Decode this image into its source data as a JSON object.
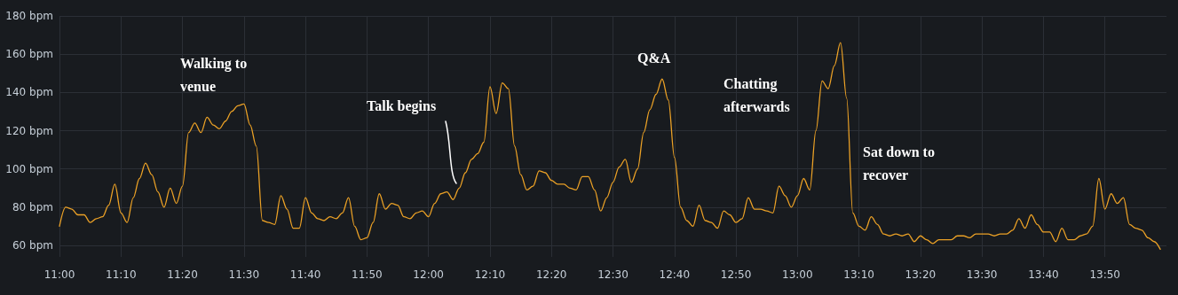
{
  "chart_data": {
    "type": "line",
    "x": [
      11.0,
      11.0167,
      11.0333,
      11.05,
      11.0667,
      11.0833,
      11.1,
      11.1167,
      11.1333,
      11.15,
      11.1667,
      11.1833,
      11.2,
      11.2167,
      11.2333,
      11.25,
      11.2667,
      11.2833,
      11.3,
      11.3167,
      11.3333,
      11.35,
      11.3667,
      11.3833,
      11.4,
      11.4167,
      11.4333,
      11.45,
      11.4667,
      11.4833,
      11.5,
      11.5167,
      11.5333,
      11.55,
      11.5667,
      11.5833,
      11.6,
      11.6167,
      11.6333,
      11.65,
      11.6667,
      11.6833,
      11.7,
      11.7167,
      11.7333,
      11.75,
      11.7667,
      11.7833,
      11.8,
      11.8167,
      11.8333,
      11.85,
      11.8667,
      11.8833,
      11.9,
      11.9167,
      11.9333,
      11.95,
      11.9667,
      11.9833,
      12.0,
      12.0167,
      12.0333,
      12.05,
      12.0667,
      12.0833,
      12.1,
      12.1167,
      12.1333,
      12.15,
      12.1667,
      12.1833,
      12.2,
      12.2167,
      12.2333,
      12.25,
      12.2667,
      12.2833,
      12.3,
      12.3167,
      12.3333,
      12.35,
      12.3667,
      12.3833,
      12.4,
      12.4167,
      12.4333,
      12.45,
      12.4667,
      12.4833,
      12.5,
      12.5167,
      12.5333,
      12.55,
      12.5667,
      12.5833,
      12.6,
      12.6167,
      12.6333,
      12.65,
      12.6667,
      12.6833,
      12.7,
      12.7167,
      12.7333,
      12.75,
      12.7667,
      12.7833,
      12.8,
      12.8167,
      12.8333,
      12.85,
      12.8667,
      12.8833,
      12.9,
      12.9167,
      12.9333,
      12.95,
      12.9667,
      12.9833,
      13.0,
      13.0167,
      13.0333,
      13.05,
      13.0667,
      13.0833,
      13.1,
      13.1167,
      13.1333,
      13.15,
      13.1667,
      13.1833,
      13.2,
      13.2167,
      13.2333,
      13.25,
      13.2667,
      13.2833,
      13.3,
      13.3167,
      13.3333,
      13.35,
      13.3667,
      13.3833,
      13.4,
      13.4167,
      13.4333,
      13.45,
      13.4667,
      13.4833,
      13.5,
      13.5167,
      13.5333,
      13.55,
      13.5667,
      13.5833,
      13.6,
      13.6167,
      13.6333,
      13.65,
      13.6667,
      13.6833,
      13.7,
      13.7167,
      13.7333,
      13.75,
      13.7667,
      13.7833,
      13.8,
      13.8167,
      13.8333,
      13.85,
      13.8667,
      13.8833,
      13.9,
      13.9167,
      13.9333,
      13.95,
      13.9667,
      13.9833
    ],
    "series": [
      {
        "color": "#eba126",
        "values": [
          70,
          80,
          79,
          76,
          76,
          72,
          74,
          75,
          81,
          92,
          77,
          72,
          85,
          95,
          103,
          97,
          88,
          80,
          90,
          82,
          91,
          119,
          124,
          119,
          127,
          123,
          121,
          125,
          130,
          133,
          134,
          123,
          112,
          73,
          72,
          71,
          86,
          79,
          69,
          69,
          85,
          77,
          74,
          73,
          75,
          74,
          77,
          85,
          70,
          63,
          64,
          72,
          87,
          79,
          82,
          81,
          75,
          74,
          77,
          78,
          75,
          82,
          87,
          88,
          84,
          90,
          98,
          105,
          108,
          114,
          143,
          129,
          145,
          142,
          112,
          97,
          89,
          91,
          99,
          98,
          94,
          92,
          92,
          90,
          89,
          96,
          96,
          89,
          78,
          85,
          93,
          101,
          105,
          93,
          100,
          119,
          131,
          139,
          147,
          136,
          106,
          80,
          73,
          70,
          81,
          73,
          72,
          69,
          78,
          76,
          72,
          74,
          85,
          79,
          79,
          78,
          77,
          91,
          86,
          80,
          86,
          95,
          89,
          120,
          146,
          142,
          154,
          166,
          137,
          77,
          70,
          68,
          75,
          71,
          66,
          65,
          66,
          65,
          66,
          62,
          65,
          63,
          61,
          63,
          63,
          63,
          65,
          65,
          64,
          66,
          66,
          66,
          65,
          66,
          66,
          68,
          74,
          69,
          76,
          71,
          67,
          67,
          62,
          69,
          63,
          63,
          65,
          66,
          70,
          95,
          79,
          87,
          82,
          85,
          71,
          69,
          68,
          64,
          62,
          58
        ]
      }
    ],
    "xlim": [
      11,
      14
    ],
    "xticks": [
      {
        "value": 11,
        "label": "11:00"
      },
      {
        "value": 11.1667,
        "label": "11:10"
      },
      {
        "value": 11.3333,
        "label": "11:20"
      },
      {
        "value": 11.5,
        "label": "11:30"
      },
      {
        "value": 11.6667,
        "label": "11:40"
      },
      {
        "value": 11.8333,
        "label": "11:50"
      },
      {
        "value": 12,
        "label": "12:00"
      },
      {
        "value": 12.1667,
        "label": "12:10"
      },
      {
        "value": 12.3333,
        "label": "12:20"
      },
      {
        "value": 12.5,
        "label": "12:30"
      },
      {
        "value": 12.6667,
        "label": "12:40"
      },
      {
        "value": 12.8333,
        "label": "12:50"
      },
      {
        "value": 13,
        "label": "13:00"
      },
      {
        "value": 13.1667,
        "label": "13:10"
      },
      {
        "value": 13.3333,
        "label": "13:20"
      },
      {
        "value": 13.5,
        "label": "13:30"
      },
      {
        "value": 13.6667,
        "label": "13:40"
      },
      {
        "value": 13.8333,
        "label": "13:50"
      }
    ],
    "ylim": [
      54,
      180
    ],
    "yticks": [
      {
        "value": 60,
        "label": "60 bpm"
      },
      {
        "value": 80,
        "label": "80 bpm"
      },
      {
        "value": 100,
        "label": "100 bpm"
      },
      {
        "value": 120,
        "label": "120 bpm"
      },
      {
        "value": 140,
        "label": "140 bpm"
      },
      {
        "value": 160,
        "label": "160 bpm"
      },
      {
        "value": 180,
        "label": "180 bpm"
      }
    ],
    "grid": true,
    "marker": "none",
    "line_style": "solid",
    "annotations": [
      "Walking to venue",
      "Talk begins",
      "Q&A",
      "Chatting afterwards",
      "Sat down to recover"
    ]
  }
}
